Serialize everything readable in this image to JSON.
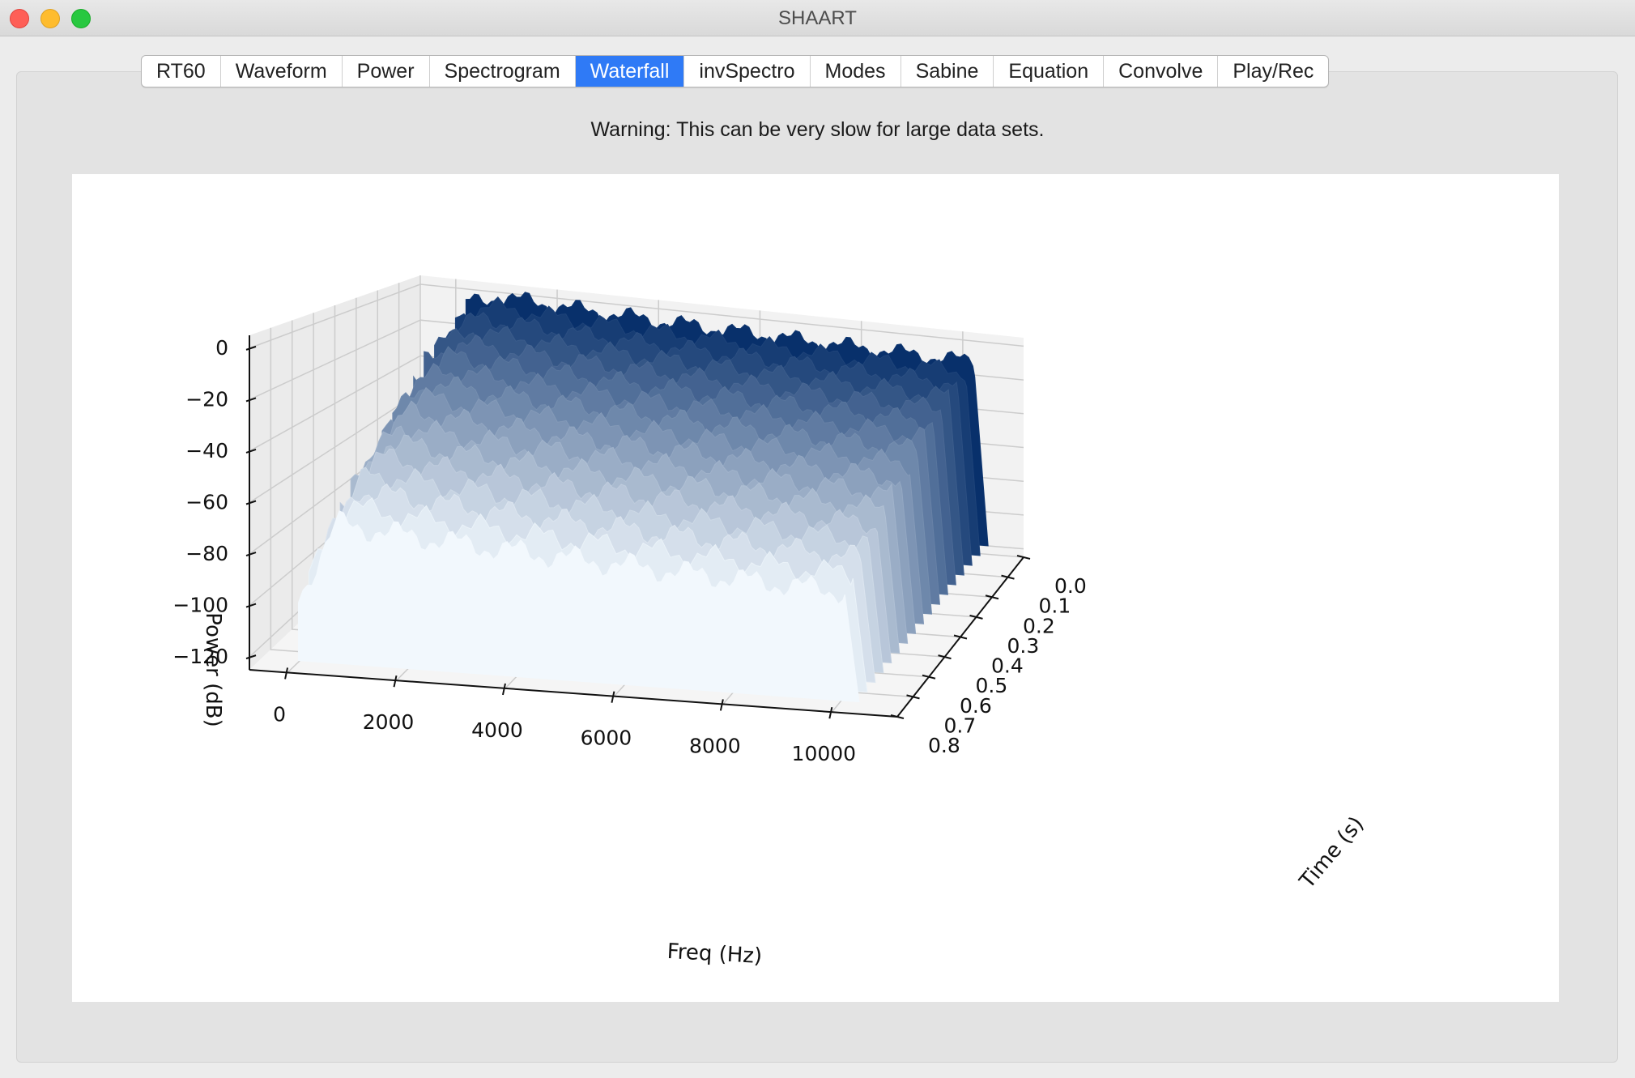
{
  "window": {
    "title": "SHAART"
  },
  "tabs": [
    {
      "label": "RT60"
    },
    {
      "label": "Waveform"
    },
    {
      "label": "Power"
    },
    {
      "label": "Spectrogram"
    },
    {
      "label": "Waterfall",
      "active": true
    },
    {
      "label": "invSpectro"
    },
    {
      "label": "Modes"
    },
    {
      "label": "Sabine"
    },
    {
      "label": "Equation"
    },
    {
      "label": "Convolve"
    },
    {
      "label": "Play/Rec"
    }
  ],
  "warning_text": "Warning: This can be very slow for large data sets.",
  "chart_data": {
    "type": "area",
    "chart_kind": "3d-waterfall",
    "xlabel": "Freq (Hz)",
    "ylabel": "Time (s)",
    "zlabel": "Power (dB)",
    "x_ticks": [
      "0",
      "2000",
      "4000",
      "6000",
      "8000",
      "10000"
    ],
    "y_ticks": [
      "0.0",
      "0.1",
      "0.2",
      "0.3",
      "0.4",
      "0.5",
      "0.6",
      "0.7",
      "0.8"
    ],
    "z_ticks": [
      "0",
      "−20",
      "−40",
      "−60",
      "−80",
      "−100",
      "−120"
    ],
    "xlim": [
      -700,
      11200
    ],
    "ylim": [
      0.0,
      0.8
    ],
    "zlim": [
      -125,
      5
    ],
    "grid": true,
    "colormap": "Blues",
    "colors": {
      "front": "#f2f8fd",
      "back": "#08306b"
    },
    "series": [
      {
        "time": 0.0,
        "level_db": -3
      },
      {
        "time": 0.05,
        "level_db": -6
      },
      {
        "time": 0.1,
        "level_db": -10
      },
      {
        "time": 0.15,
        "level_db": -14
      },
      {
        "time": 0.2,
        "level_db": -18
      },
      {
        "time": 0.25,
        "level_db": -22
      },
      {
        "time": 0.3,
        "level_db": -26
      },
      {
        "time": 0.35,
        "level_db": -30
      },
      {
        "time": 0.4,
        "level_db": -34
      },
      {
        "time": 0.45,
        "level_db": -38
      },
      {
        "time": 0.5,
        "level_db": -42
      },
      {
        "time": 0.55,
        "level_db": -46
      },
      {
        "time": 0.6,
        "level_db": -50
      },
      {
        "time": 0.65,
        "level_db": -54
      },
      {
        "time": 0.7,
        "level_db": -58
      },
      {
        "time": 0.75,
        "level_db": -62
      },
      {
        "time": 0.8,
        "level_db": -66
      }
    ],
    "falloff_hz": 10200,
    "floor_db": -120
  }
}
